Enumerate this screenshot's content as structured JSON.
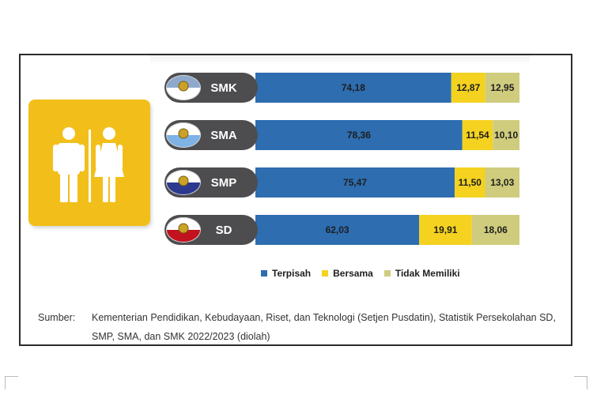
{
  "chart_data": {
    "type": "bar",
    "orientation": "horizontal",
    "stacked": true,
    "unit": "percent",
    "categories": [
      "SMK",
      "SMA",
      "SMP",
      "SD"
    ],
    "series": [
      {
        "name": "Terpisah",
        "color": "#2d6db0",
        "values": [
          74.18,
          78.36,
          75.47,
          62.03
        ],
        "labels": [
          "74,18",
          "78,36",
          "75,47",
          "62,03"
        ]
      },
      {
        "name": "Bersama",
        "color": "#f4d21f",
        "values": [
          12.87,
          11.54,
          11.5,
          19.91
        ],
        "labels": [
          "12,87",
          "11,54",
          "11,50",
          "19,91"
        ]
      },
      {
        "name": "Tidak Memiliki",
        "color": "#cfcc7e",
        "values": [
          12.95,
          10.1,
          13.03,
          18.06
        ],
        "labels": [
          "12,95",
          "10,10",
          "13,03",
          "18,06"
        ]
      }
    ],
    "xlim": [
      0,
      100
    ],
    "legend_position": "bottom",
    "grid": false
  },
  "badges": [
    {
      "level": "SMK",
      "colors": [
        "#8fa9cc",
        "#ffffff"
      ]
    },
    {
      "level": "SMA",
      "colors": [
        "#ffffff",
        "#7fb2e5"
      ]
    },
    {
      "level": "SMP",
      "colors": [
        "#ffffff",
        "#2b3a8f"
      ]
    },
    {
      "level": "SD",
      "colors": [
        "#ffffff",
        "#c1121f"
      ]
    }
  ],
  "icon": {
    "name": "restroom-icon",
    "color": "#f2bf1a"
  },
  "source": {
    "label": "Sumber:",
    "text": "Kementerian Pendidikan, Kebudayaan, Riset, dan Teknologi (Setjen Pusdatin), Statistik Persekolahan SD, SMP, SMA, dan SMK 2022/2023 (diolah)"
  }
}
